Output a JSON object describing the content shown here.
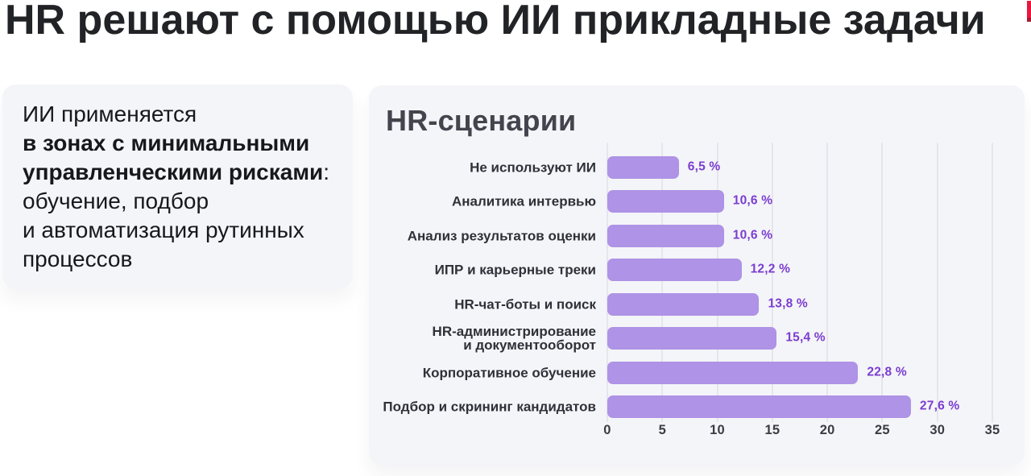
{
  "header": {
    "title": "HR решают с помощью ИИ прикладные задачи"
  },
  "logo_fragment": {
    "color": "#e8173f",
    "shade_color": "#a81a34"
  },
  "info_card": {
    "lines": [
      [
        {
          "text": "ИИ применяется",
          "bold": false
        }
      ],
      [
        {
          "text": "в зонах с минимальными",
          "bold": true
        }
      ],
      [
        {
          "text": "управленческими рисками",
          "bold": true
        },
        {
          "text": ":",
          "bold": false
        }
      ],
      [
        {
          "text": "обучение, подбор",
          "bold": false
        }
      ],
      [
        {
          "text": "и автоматизация рутинных",
          "bold": false
        }
      ],
      [
        {
          "text": "процессов",
          "bold": false
        }
      ]
    ]
  },
  "chart_card": {
    "title": "HR-сценарии"
  },
  "chart_data": {
    "type": "bar",
    "orientation": "horizontal",
    "title": "HR-сценарии",
    "categories": [
      "Не используют ИИ",
      "Аналитика интервью",
      "Анализ результатов оценки",
      "ИПР и карьерные треки",
      "HR-чат-боты и поиск",
      "HR-администрирование\nи документооборот",
      "Корпоративное обучение",
      "Подбор и скрининг кандидатов"
    ],
    "values": [
      6.5,
      10.6,
      10.6,
      12.2,
      13.8,
      15.4,
      22.8,
      27.6
    ],
    "value_labels": [
      "6,5 %",
      "10,6 %",
      "10,6 %",
      "12,2 %",
      "13,8 %",
      "15,4 %",
      "22,8 %",
      "27,6 %"
    ],
    "xlabel": "",
    "ylabel": "",
    "xlim": [
      0,
      35
    ],
    "xticks": [
      0,
      5,
      10,
      15,
      20,
      25,
      30,
      35
    ],
    "grid": true,
    "legend": false,
    "bar_color": "#ae93e6",
    "value_label_color": "#7b3dd1",
    "category_label_color": "#2f3038",
    "tick_label_color": "#3b3c44",
    "gridline_color": "#e6e4ee"
  }
}
